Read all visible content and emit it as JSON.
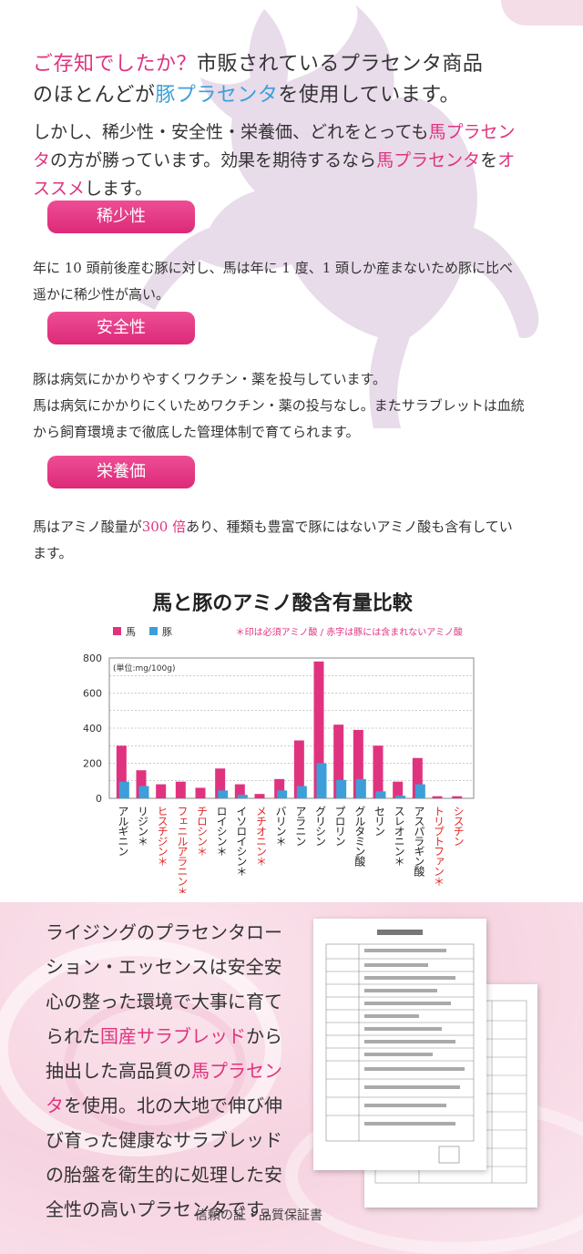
{
  "intro": {
    "q": "ご存知でしたか？",
    "line1": "市販されているプラセンタ商品",
    "line2_pre": "のほとんどが",
    "line2_hl": "豚プラセンタ",
    "line2_post": "を使用しています。"
  },
  "para2": {
    "t1": "しかし、稀少性・安全性・栄養価、どれをとっても",
    "h1": "馬プラセンタ",
    "t2": "の方が勝っています。効果を期待するなら",
    "h2": "馬プラセンタ",
    "t3": "を",
    "h3": "オススメ",
    "t4": "します。"
  },
  "sections": [
    {
      "title": "稀少性",
      "text": "年に 10 頭前後産む豚に対し、馬は年に 1 度、1 頭しか産まないため豚に比べ遥かに稀少性が高い。"
    },
    {
      "title": "安全性",
      "text1": "豚は病気にかかりやすくワクチン・薬を投与しています。",
      "text2": "馬は病気にかかりにくいためワクチン・薬の投与なし。またサラブレットは血統から飼育環境まで徹底した管理体制で育てられます。"
    },
    {
      "title": "栄養価",
      "text_pre": "馬はアミノ酸量が",
      "text_hl": "300 倍",
      "text_post": "あり、種類も豊富で豚にはないアミノ酸も含有しています。"
    }
  ],
  "chart_data": {
    "type": "bar",
    "title": "馬と豚のアミノ酸含有量比較",
    "note": "＊印は必須アミノ酸 / 赤字は豚には含まれないアミノ酸",
    "unit": "(単位:mg/100g)",
    "ylim": [
      0,
      800
    ],
    "yticks": [
      0,
      200,
      400,
      600,
      800
    ],
    "categories": [
      "アルギニン",
      "リジン＊",
      "ヒスチジン＊",
      "フェニルアラニン＊",
      "チロシン＊",
      "ロイシン＊",
      "イソロイシン＊",
      "メチオニン＊",
      "バリン＊",
      "アラニン",
      "グリシン",
      "プロリン",
      "グルタミン酸",
      "セリン",
      "スレオニン＊",
      "アスパラギン酸",
      "トリプトファン＊",
      "シスチン"
    ],
    "red_labels": [
      false,
      false,
      true,
      true,
      true,
      false,
      false,
      true,
      false,
      false,
      false,
      false,
      false,
      false,
      false,
      false,
      true,
      true
    ],
    "series": [
      {
        "name": "馬",
        "color": "#e0337f",
        "values": [
          300,
          160,
          80,
          95,
          60,
          170,
          80,
          25,
          110,
          330,
          780,
          420,
          390,
          300,
          95,
          230,
          12,
          12
        ]
      },
      {
        "name": "豚",
        "color": "#3d9fd9",
        "values": [
          95,
          70,
          0,
          0,
          0,
          45,
          20,
          0,
          45,
          70,
          200,
          105,
          110,
          40,
          15,
          80,
          0,
          0
        ]
      }
    ],
    "grid": true,
    "legend": "top-left"
  },
  "bottom": {
    "t1": "ライジングのプラセンタローション・エッセンスは安全安心の整った環境で大事に育てられた",
    "h1": "国産サラブレッド",
    "t2": "から抽出した高品質の",
    "h2": "馬プラセンタ",
    "t3": "を使用。北の大地で伸び伸び育った健康なサラブレッドの胎盤を衛生的に処理した安全性の高いプラセンタです。",
    "caption": "信頼の証・品質保証書"
  }
}
